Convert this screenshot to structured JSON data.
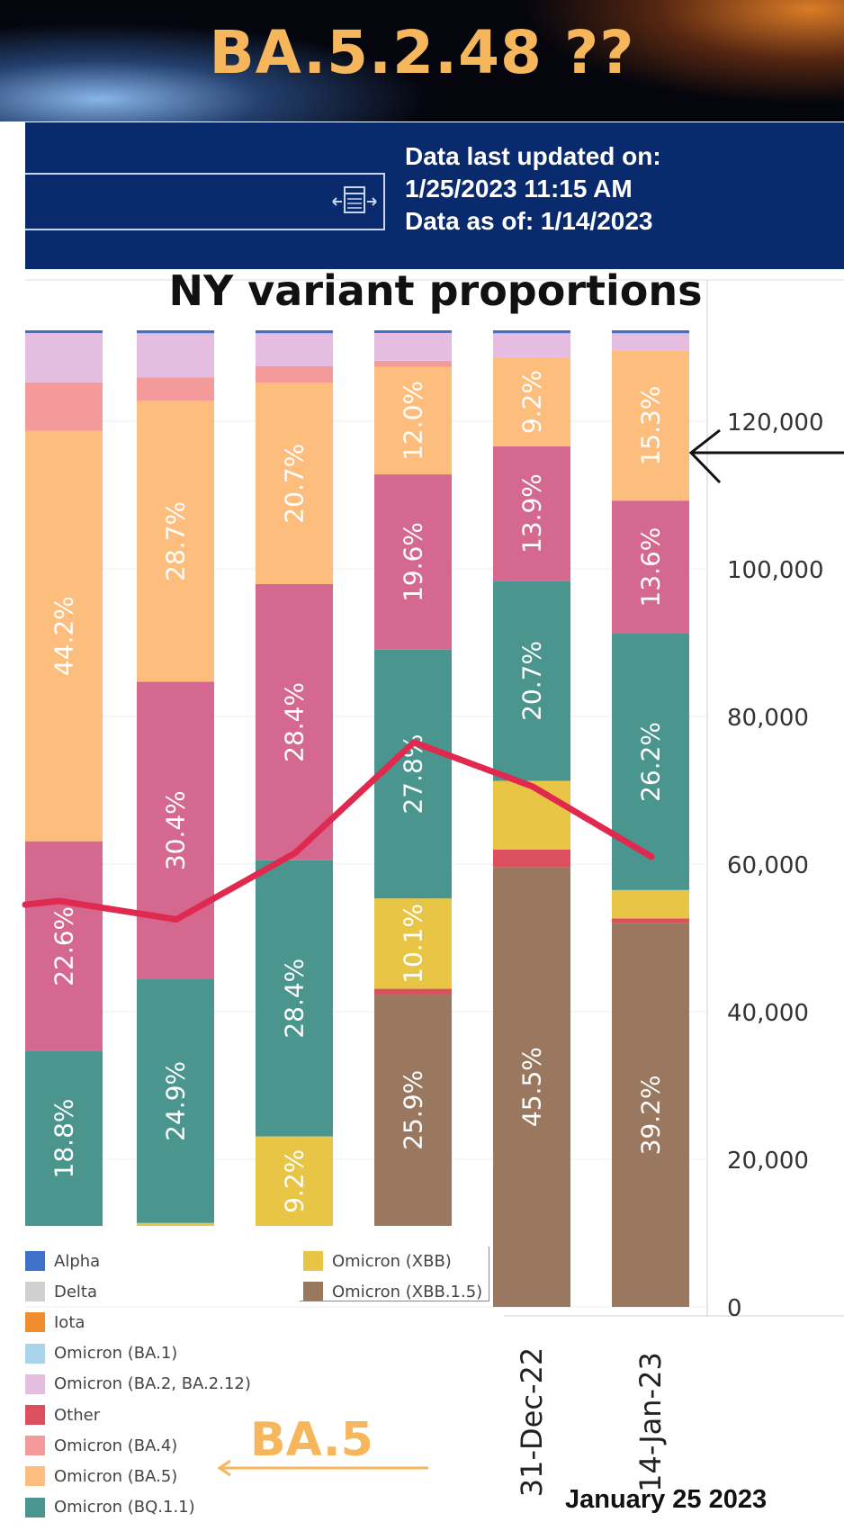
{
  "header": {
    "title": "BA.5.2.48  ??"
  },
  "info": {
    "line1": "Data last updated on:",
    "line2": "1/25/2023 11:15 AM",
    "line3": "Data as of: 1/14/2023"
  },
  "colors": {
    "alpha": "#3e72c9",
    "delta": "#d0d0d0",
    "iota": "#f08c2e",
    "ba1": "#a8d4ec",
    "ba2": "#e5bde0",
    "other": "#dc4f5e",
    "ba4": "#f59a9a",
    "ba5": "#fdbd7c",
    "bq11": "#4a968f",
    "ba275": "#d5688f",
    "xbb": "#e8c545",
    "xbb15": "#9a775f",
    "line": "#e0294f",
    "annotation_orange": "#f6b65c"
  },
  "chart_data": {
    "type": "bar",
    "title": "NY variant proportions",
    "categories": [
      "",
      "",
      "",
      "",
      "31-Dec-22",
      "14-Jan-23"
    ],
    "y_right_ticks": [
      "0",
      "20,000",
      "40,000",
      "60,000",
      "80,000",
      "100,000",
      "120,000"
    ],
    "y_right_range": [
      0,
      130000
    ],
    "stacked": true,
    "series": [
      {
        "key": "xbb15",
        "name": "Omicron (XBB.1.5)",
        "values": [
          0,
          0,
          0,
          25.9,
          45.5,
          39.2
        ],
        "labels": [
          "",
          "",
          "",
          "25.9%",
          "45.5%",
          "39.2%"
        ]
      },
      {
        "key": "other",
        "name": "Other",
        "values": [
          0,
          0,
          0,
          0.6,
          1.8,
          0.5
        ],
        "labels": [
          "",
          "",
          "",
          "",
          "",
          ""
        ]
      },
      {
        "key": "xbb",
        "name": "Omicron (XBB)",
        "values": [
          0,
          0.3,
          9.2,
          10.1,
          7.1,
          2.9
        ],
        "labels": [
          "",
          "",
          "9.2%",
          "10.1%",
          "",
          ""
        ]
      },
      {
        "key": "bq11",
        "name": "Omicron (BQ.1.1)",
        "values": [
          18.8,
          24.9,
          28.4,
          27.8,
          20.7,
          26.2
        ],
        "labels": [
          "18.8%",
          "24.9%",
          "28.4%",
          "27.8%",
          "20.7%",
          "26.2%"
        ]
      },
      {
        "key": "ba275",
        "name": "",
        "values": [
          22.6,
          30.4,
          28.4,
          19.6,
          13.9,
          13.6
        ],
        "labels": [
          "22.6%",
          "30.4%",
          "28.4%",
          "19.6%",
          "13.9%",
          "13.6%"
        ]
      },
      {
        "key": "ba5",
        "name": "Omicron (BA.5)",
        "values": [
          44.2,
          28.7,
          20.7,
          12.0,
          9.2,
          15.3
        ],
        "labels": [
          "44.2%",
          "28.7%",
          "20.7%",
          "12.0%",
          "9.2%",
          "15.3%"
        ]
      },
      {
        "key": "ba4",
        "name": "Omicron (BA.4)",
        "values": [
          5.2,
          2.4,
          1.7,
          0.7,
          0.0,
          0.0
        ],
        "labels": [
          "",
          "",
          "",
          "",
          "",
          ""
        ]
      },
      {
        "key": "ba2",
        "name": "Omicron (BA.2, BA.2.12)",
        "values": [
          5.3,
          4.5,
          3.4,
          3.1,
          2.5,
          1.8
        ],
        "labels": [
          "",
          "",
          "",
          "",
          "",
          ""
        ]
      },
      {
        "key": "alpha",
        "name": "Alpha",
        "values": [
          0.3,
          0.3,
          0.3,
          0.3,
          0.3,
          0.3
        ],
        "labels": [
          "",
          "",
          "",
          "",
          "",
          ""
        ]
      }
    ],
    "cases_line": {
      "name": "",
      "values": [
        55000,
        52500,
        61500,
        76500,
        70500,
        61000
      ]
    },
    "legend": {
      "col1": [
        {
          "label": "Alpha",
          "color_key": "alpha"
        },
        {
          "label": "Delta",
          "color_key": "delta"
        },
        {
          "label": "Iota",
          "color_key": "iota"
        },
        {
          "label": "Omicron (BA.1)",
          "color_key": "ba1"
        },
        {
          "label": "Omicron (BA.2, BA.2.12)",
          "color_key": "ba2"
        },
        {
          "label": "Other",
          "color_key": "other"
        },
        {
          "label": "Omicron (BA.4)",
          "color_key": "ba4"
        },
        {
          "label": "Omicron (BA.5)",
          "color_key": "ba5"
        },
        {
          "label": "Omicron (BQ.1.1)",
          "color_key": "bq11"
        }
      ],
      "col2": [
        {
          "label": "Omicron (XBB)",
          "color_key": "xbb"
        },
        {
          "label": "Omicron (XBB.1.5)",
          "color_key": "xbb15"
        }
      ]
    },
    "legend_position": "bottom-left",
    "grid": true
  },
  "annotations": {
    "ba5_label": "BA.5",
    "date": "January 25 2023"
  }
}
